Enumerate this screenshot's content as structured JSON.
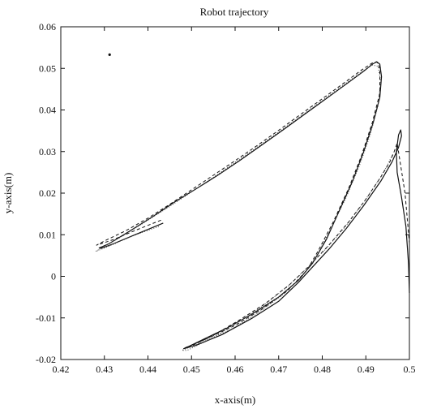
{
  "chart_data": {
    "type": "line",
    "title": "Robot trajectory",
    "xlabel": "x-axis(m)",
    "ylabel": "y-axis(m)",
    "xlim": [
      0.42,
      0.5
    ],
    "ylim": [
      -0.02,
      0.06
    ],
    "xticks": [
      0.42,
      0.43,
      0.44,
      0.45,
      0.46,
      0.47,
      0.48,
      0.49,
      0.5
    ],
    "xtick_labels": [
      "0.42",
      "0.43",
      "0.44",
      "0.45",
      "0.46",
      "0.47",
      "0.48",
      "0.49",
      "0.5"
    ],
    "yticks": [
      -0.02,
      -0.01,
      0,
      0.01,
      0.02,
      0.03,
      0.04,
      0.05,
      0.06
    ],
    "ytick_labels": [
      "-0.02",
      "-0.01",
      "0",
      "0.01",
      "0.02",
      "0.03",
      "0.04",
      "0.05",
      "0.06"
    ],
    "grid": false,
    "legend": "none",
    "series": [
      {
        "style": "solid",
        "color": "#111111",
        "points": [
          [
            0.4435,
            0.0128
          ],
          [
            0.437,
            0.01
          ],
          [
            0.432,
            0.0078
          ],
          [
            0.4295,
            0.0068
          ],
          [
            0.4288,
            0.0068
          ],
          [
            0.431,
            0.0078
          ],
          [
            0.436,
            0.011
          ],
          [
            0.441,
            0.0143
          ],
          [
            0.446,
            0.0178
          ],
          [
            0.451,
            0.021
          ],
          [
            0.456,
            0.0243
          ],
          [
            0.461,
            0.0278
          ],
          [
            0.466,
            0.0315
          ],
          [
            0.471,
            0.0352
          ],
          [
            0.476,
            0.039
          ],
          [
            0.481,
            0.0428
          ],
          [
            0.486,
            0.0466
          ],
          [
            0.4895,
            0.0493
          ],
          [
            0.4915,
            0.051
          ],
          [
            0.4925,
            0.0516
          ],
          [
            0.4932,
            0.051
          ],
          [
            0.4936,
            0.048
          ],
          [
            0.4932,
            0.043
          ],
          [
            0.4917,
            0.037
          ],
          [
            0.4895,
            0.03
          ],
          [
            0.487,
            0.023
          ],
          [
            0.484,
            0.016
          ],
          [
            0.481,
            0.009
          ],
          [
            0.4778,
            0.0032
          ],
          [
            0.4745,
            -0.001
          ],
          [
            0.47,
            -0.005
          ],
          [
            0.464,
            -0.009
          ],
          [
            0.458,
            -0.0125
          ],
          [
            0.453,
            -0.015
          ],
          [
            0.4495,
            -0.0168
          ],
          [
            0.4482,
            -0.0174
          ],
          [
            0.451,
            -0.0166
          ],
          [
            0.457,
            -0.014
          ],
          [
            0.464,
            -0.01
          ],
          [
            0.47,
            -0.006
          ],
          [
            0.4745,
            -0.0015
          ],
          [
            0.478,
            0.0025
          ],
          [
            0.4815,
            0.0065
          ],
          [
            0.4855,
            0.0115
          ],
          [
            0.4895,
            0.017
          ],
          [
            0.4935,
            0.023
          ],
          [
            0.496,
            0.0275
          ],
          [
            0.4975,
            0.031
          ],
          [
            0.4982,
            0.0338
          ],
          [
            0.498,
            0.0352
          ],
          [
            0.4975,
            0.034
          ],
          [
            0.497,
            0.03
          ],
          [
            0.4972,
            0.025
          ],
          [
            0.4982,
            0.019
          ],
          [
            0.4992,
            0.012
          ],
          [
            0.4998,
            0.003
          ],
          [
            0.5,
            -0.004
          ]
        ]
      },
      {
        "style": "dashed",
        "color": "#111111",
        "points": [
          [
            0.443,
            0.0135
          ],
          [
            0.437,
            0.011
          ],
          [
            0.432,
            0.0088
          ],
          [
            0.4282,
            0.0075
          ],
          [
            0.43,
            0.0085
          ],
          [
            0.435,
            0.011
          ],
          [
            0.44,
            0.014
          ],
          [
            0.445,
            0.0173
          ],
          [
            0.45,
            0.0208
          ],
          [
            0.455,
            0.0243
          ],
          [
            0.46,
            0.0278
          ],
          [
            0.465,
            0.0314
          ],
          [
            0.47,
            0.0351
          ],
          [
            0.475,
            0.0389
          ],
          [
            0.48,
            0.0427
          ],
          [
            0.485,
            0.0465
          ],
          [
            0.489,
            0.0496
          ],
          [
            0.4915,
            0.0513
          ],
          [
            0.4925,
            0.0516
          ],
          [
            0.4932,
            0.05
          ],
          [
            0.4932,
            0.044
          ],
          [
            0.4915,
            0.037
          ],
          [
            0.489,
            0.029
          ],
          [
            0.486,
            0.021
          ],
          [
            0.4825,
            0.013
          ],
          [
            0.479,
            0.006
          ],
          [
            0.4765,
            0.0015
          ],
          [
            0.472,
            -0.0035
          ],
          [
            0.466,
            -0.008
          ],
          [
            0.46,
            -0.0118
          ],
          [
            0.4535,
            -0.015
          ],
          [
            0.4485,
            -0.0172
          ],
          [
            0.4495,
            -0.017
          ],
          [
            0.455,
            -0.0142
          ],
          [
            0.461,
            -0.0105
          ],
          [
            0.467,
            -0.0065
          ],
          [
            0.4725,
            -0.002
          ],
          [
            0.477,
            0.0025
          ],
          [
            0.4815,
            0.0075
          ],
          [
            0.486,
            0.013
          ],
          [
            0.49,
            0.0185
          ],
          [
            0.4935,
            0.024
          ],
          [
            0.4955,
            0.0275
          ],
          [
            0.4965,
            0.03
          ],
          [
            0.4972,
            0.032
          ],
          [
            0.499,
            0.02
          ],
          [
            0.5,
            0.008
          ]
        ]
      },
      {
        "style": "dotted",
        "color": "#444444",
        "points": [
          [
            0.4425,
            0.012
          ],
          [
            0.436,
            0.0095
          ],
          [
            0.431,
            0.0072
          ],
          [
            0.428,
            0.006
          ],
          [
            0.43,
            0.0072
          ],
          [
            0.435,
            0.0102
          ],
          [
            0.44,
            0.0135
          ],
          [
            0.445,
            0.0168
          ],
          [
            0.45,
            0.0203
          ],
          [
            0.455,
            0.0238
          ],
          [
            0.46,
            0.0274
          ],
          [
            0.465,
            0.031
          ],
          [
            0.47,
            0.0347
          ],
          [
            0.475,
            0.0385
          ],
          [
            0.48,
            0.0423
          ],
          [
            0.485,
            0.0461
          ],
          [
            0.489,
            0.0492
          ],
          [
            0.4915,
            0.0508
          ],
          [
            0.4928,
            0.0505
          ],
          [
            0.4934,
            0.047
          ],
          [
            0.4928,
            0.041
          ],
          [
            0.491,
            0.034
          ],
          [
            0.4885,
            0.0265
          ],
          [
            0.4855,
            0.019
          ],
          [
            0.482,
            0.0115
          ],
          [
            0.4785,
            0.0045
          ],
          [
            0.475,
            -0.0005
          ],
          [
            0.4705,
            -0.0048
          ],
          [
            0.465,
            -0.009
          ],
          [
            0.459,
            -0.0128
          ],
          [
            0.4525,
            -0.0158
          ],
          [
            0.4478,
            -0.0178
          ],
          [
            0.449,
            -0.0178
          ],
          [
            0.4545,
            -0.015
          ],
          [
            0.4605,
            -0.0112
          ],
          [
            0.4665,
            -0.007
          ],
          [
            0.472,
            -0.0025
          ],
          [
            0.4765,
            0.002
          ],
          [
            0.481,
            0.0068
          ],
          [
            0.4855,
            0.0122
          ],
          [
            0.4895,
            0.0178
          ],
          [
            0.493,
            0.0232
          ],
          [
            0.495,
            0.0268
          ],
          [
            0.4962,
            0.0295
          ]
        ]
      }
    ],
    "markers": [
      {
        "x": 0.4312,
        "y": 0.0533
      }
    ]
  }
}
